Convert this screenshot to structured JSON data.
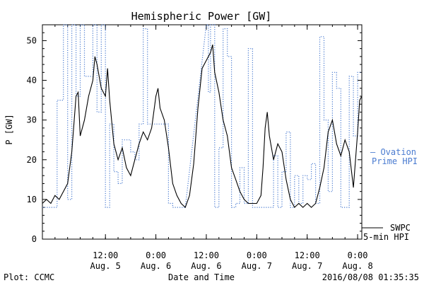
{
  "chart_data": {
    "type": "line",
    "title": "Hemispheric Power [GW]",
    "xlabel": "Date and Time",
    "ylabel": "P [GW]",
    "xlim": [
      "2016-08-04 21:00",
      "2016-08-08 01:00"
    ],
    "ylim": [
      0,
      54
    ],
    "yticks": [
      0,
      10,
      20,
      30,
      40,
      50
    ],
    "xticks": [
      {
        "time": "2016-08-05 12:00",
        "line1": "12:00",
        "line2": "Aug. 5"
      },
      {
        "time": "2016-08-06 00:00",
        "line1": "0:00",
        "line2": "Aug. 6"
      },
      {
        "time": "2016-08-06 12:00",
        "line1": "12:00",
        "line2": "Aug. 6"
      },
      {
        "time": "2016-08-07 00:00",
        "line1": "0:00",
        "line2": "Aug. 7"
      },
      {
        "time": "2016-08-07 12:00",
        "line1": "12:00",
        "line2": "Aug. 7"
      },
      {
        "time": "2016-08-08 00:00",
        "line1": "0:00",
        "line2": "Aug. 8"
      }
    ],
    "legend_position": "right",
    "series": [
      {
        "name": "SWPC 5-min HPI",
        "label_lines": [
          "SWPC",
          "5-min HPI"
        ],
        "color": "#000000",
        "style": "solid",
        "points": [
          [
            "2016-08-04 21:00",
            9
          ],
          [
            "2016-08-04 22:00",
            10
          ],
          [
            "2016-08-04 23:00",
            9
          ],
          [
            "2016-08-05 00:00",
            11
          ],
          [
            "2016-08-05 01:00",
            10
          ],
          [
            "2016-08-05 02:00",
            12
          ],
          [
            "2016-08-05 03:00",
            14
          ],
          [
            "2016-08-05 04:00",
            22
          ],
          [
            "2016-08-05 05:00",
            36
          ],
          [
            "2016-08-05 05:30",
            37
          ],
          [
            "2016-08-05 06:00",
            26
          ],
          [
            "2016-08-05 07:00",
            30
          ],
          [
            "2016-08-05 08:00",
            36
          ],
          [
            "2016-08-05 09:00",
            40
          ],
          [
            "2016-08-05 09:30",
            46
          ],
          [
            "2016-08-05 10:00",
            44
          ],
          [
            "2016-08-05 11:00",
            38
          ],
          [
            "2016-08-05 12:00",
            36
          ],
          [
            "2016-08-05 12:30",
            43
          ],
          [
            "2016-08-05 13:00",
            35
          ],
          [
            "2016-08-05 14:00",
            24
          ],
          [
            "2016-08-05 15:00",
            20
          ],
          [
            "2016-08-05 16:00",
            23
          ],
          [
            "2016-08-05 17:00",
            18
          ],
          [
            "2016-08-05 18:00",
            16
          ],
          [
            "2016-08-05 19:00",
            20
          ],
          [
            "2016-08-05 20:00",
            24
          ],
          [
            "2016-08-05 21:00",
            27
          ],
          [
            "2016-08-05 22:00",
            25
          ],
          [
            "2016-08-05 23:00",
            28
          ],
          [
            "2016-08-06 00:00",
            36
          ],
          [
            "2016-08-06 00:30",
            38
          ],
          [
            "2016-08-06 01:00",
            33
          ],
          [
            "2016-08-06 02:00",
            30
          ],
          [
            "2016-08-06 03:00",
            23
          ],
          [
            "2016-08-06 04:00",
            14
          ],
          [
            "2016-08-06 05:00",
            11
          ],
          [
            "2016-08-06 06:00",
            9
          ],
          [
            "2016-08-06 07:00",
            8
          ],
          [
            "2016-08-06 08:00",
            11
          ],
          [
            "2016-08-06 09:00",
            19
          ],
          [
            "2016-08-06 10:00",
            33
          ],
          [
            "2016-08-06 11:00",
            43
          ],
          [
            "2016-08-06 12:00",
            45
          ],
          [
            "2016-08-06 13:00",
            47
          ],
          [
            "2016-08-06 13:30",
            49
          ],
          [
            "2016-08-06 14:00",
            42
          ],
          [
            "2016-08-06 15:00",
            37
          ],
          [
            "2016-08-06 16:00",
            30
          ],
          [
            "2016-08-06 17:00",
            26
          ],
          [
            "2016-08-06 18:00",
            18
          ],
          [
            "2016-08-06 19:00",
            15
          ],
          [
            "2016-08-06 20:00",
            12
          ],
          [
            "2016-08-06 21:00",
            10
          ],
          [
            "2016-08-06 22:00",
            9
          ],
          [
            "2016-08-06 23:00",
            9
          ],
          [
            "2016-08-07 00:00",
            9
          ],
          [
            "2016-08-07 01:00",
            11
          ],
          [
            "2016-08-07 01:30",
            18
          ],
          [
            "2016-08-07 02:00",
            28
          ],
          [
            "2016-08-07 02:30",
            32
          ],
          [
            "2016-08-07 03:00",
            26
          ],
          [
            "2016-08-07 04:00",
            20
          ],
          [
            "2016-08-07 05:00",
            24
          ],
          [
            "2016-08-07 06:00",
            22
          ],
          [
            "2016-08-07 07:00",
            15
          ],
          [
            "2016-08-07 08:00",
            10
          ],
          [
            "2016-08-07 09:00",
            8
          ],
          [
            "2016-08-07 10:00",
            9
          ],
          [
            "2016-08-07 11:00",
            8
          ],
          [
            "2016-08-07 12:00",
            9
          ],
          [
            "2016-08-07 13:00",
            8
          ],
          [
            "2016-08-07 14:00",
            9
          ],
          [
            "2016-08-07 15:00",
            13
          ],
          [
            "2016-08-07 16:00",
            18
          ],
          [
            "2016-08-07 17:00",
            27
          ],
          [
            "2016-08-07 18:00",
            30
          ],
          [
            "2016-08-07 19:00",
            24
          ],
          [
            "2016-08-07 20:00",
            21
          ],
          [
            "2016-08-07 21:00",
            25
          ],
          [
            "2016-08-07 22:00",
            22
          ],
          [
            "2016-08-07 23:00",
            13
          ],
          [
            "2016-08-08 00:00",
            27
          ],
          [
            "2016-08-08 00:30",
            35
          ],
          [
            "2016-08-08 01:00",
            36
          ]
        ]
      },
      {
        "name": "Ovation Prime HPI",
        "label_lines": [
          "— Ovation",
          "Prime HPI"
        ],
        "color": "#4a7bd0",
        "style": "dotted",
        "points": [
          [
            "2016-08-04 21:00",
            8
          ],
          [
            "2016-08-05 00:30",
            8
          ],
          [
            "2016-08-05 00:30",
            35
          ],
          [
            "2016-08-05 02:00",
            35
          ],
          [
            "2016-08-05 02:00",
            54
          ],
          [
            "2016-08-05 03:00",
            54
          ],
          [
            "2016-08-05 03:00",
            10
          ],
          [
            "2016-08-05 04:00",
            10
          ],
          [
            "2016-08-05 04:00",
            54
          ],
          [
            "2016-08-05 05:00",
            54
          ],
          [
            "2016-08-05 05:00",
            36
          ],
          [
            "2016-08-05 06:00",
            36
          ],
          [
            "2016-08-05 06:00",
            54
          ],
          [
            "2016-08-05 07:00",
            54
          ],
          [
            "2016-08-05 07:00",
            41
          ],
          [
            "2016-08-05 09:00",
            41
          ],
          [
            "2016-08-05 09:00",
            54
          ],
          [
            "2016-08-05 10:00",
            54
          ],
          [
            "2016-08-05 10:00",
            32
          ],
          [
            "2016-08-05 11:00",
            32
          ],
          [
            "2016-08-05 11:00",
            54
          ],
          [
            "2016-08-05 12:00",
            54
          ],
          [
            "2016-08-05 12:00",
            8
          ],
          [
            "2016-08-05 13:00",
            8
          ],
          [
            "2016-08-05 13:00",
            29
          ],
          [
            "2016-08-05 14:00",
            29
          ],
          [
            "2016-08-05 14:00",
            17
          ],
          [
            "2016-08-05 15:00",
            17
          ],
          [
            "2016-08-05 15:00",
            14
          ],
          [
            "2016-08-05 16:00",
            14
          ],
          [
            "2016-08-05 16:00",
            25
          ],
          [
            "2016-08-05 18:00",
            25
          ],
          [
            "2016-08-05 18:00",
            22
          ],
          [
            "2016-08-05 19:00",
            22
          ],
          [
            "2016-08-05 19:00",
            20
          ],
          [
            "2016-08-05 20:00",
            20
          ],
          [
            "2016-08-05 20:00",
            29
          ],
          [
            "2016-08-05 21:00",
            29
          ],
          [
            "2016-08-05 21:00",
            53
          ],
          [
            "2016-08-05 22:00",
            53
          ],
          [
            "2016-08-05 22:00",
            29
          ],
          [
            "2016-08-06 03:00",
            29
          ],
          [
            "2016-08-06 03:00",
            9
          ],
          [
            "2016-08-06 04:00",
            9
          ],
          [
            "2016-08-06 04:00",
            8
          ],
          [
            "2016-08-06 07:00",
            8
          ],
          [
            "2016-08-06 12:00",
            54
          ],
          [
            "2016-08-06 12:30",
            54
          ],
          [
            "2016-08-06 12:30",
            37
          ],
          [
            "2016-08-06 13:00",
            37
          ],
          [
            "2016-08-06 13:00",
            54
          ],
          [
            "2016-08-06 14:00",
            54
          ],
          [
            "2016-08-06 14:00",
            8
          ],
          [
            "2016-08-06 15:00",
            8
          ],
          [
            "2016-08-06 15:00",
            23
          ],
          [
            "2016-08-06 16:00",
            23
          ],
          [
            "2016-08-06 16:00",
            53
          ],
          [
            "2016-08-06 17:00",
            53
          ],
          [
            "2016-08-06 17:00",
            46
          ],
          [
            "2016-08-06 18:00",
            46
          ],
          [
            "2016-08-06 18:00",
            8
          ],
          [
            "2016-08-06 19:00",
            8
          ],
          [
            "2016-08-06 19:00",
            9
          ],
          [
            "2016-08-06 20:00",
            9
          ],
          [
            "2016-08-06 20:00",
            18
          ],
          [
            "2016-08-06 21:00",
            18
          ],
          [
            "2016-08-06 21:00",
            9
          ],
          [
            "2016-08-06 22:00",
            9
          ],
          [
            "2016-08-06 22:00",
            48
          ],
          [
            "2016-08-06 23:00",
            48
          ],
          [
            "2016-08-06 23:00",
            8
          ],
          [
            "2016-08-07 04:00",
            8
          ],
          [
            "2016-08-07 04:00",
            21
          ],
          [
            "2016-08-07 05:00",
            21
          ],
          [
            "2016-08-07 05:00",
            8
          ],
          [
            "2016-08-07 06:00",
            8
          ],
          [
            "2016-08-07 06:00",
            17
          ],
          [
            "2016-08-07 07:00",
            17
          ],
          [
            "2016-08-07 07:00",
            27
          ],
          [
            "2016-08-07 08:00",
            27
          ],
          [
            "2016-08-07 08:00",
            8
          ],
          [
            "2016-08-07 09:00",
            8
          ],
          [
            "2016-08-07 09:00",
            16
          ],
          [
            "2016-08-07 10:00",
            16
          ],
          [
            "2016-08-07 10:00",
            9
          ],
          [
            "2016-08-07 11:00",
            9
          ],
          [
            "2016-08-07 11:00",
            16
          ],
          [
            "2016-08-07 12:00",
            16
          ],
          [
            "2016-08-07 12:00",
            15
          ],
          [
            "2016-08-07 13:00",
            15
          ],
          [
            "2016-08-07 13:00",
            19
          ],
          [
            "2016-08-07 14:00",
            19
          ],
          [
            "2016-08-07 14:00",
            9
          ],
          [
            "2016-08-07 15:00",
            9
          ],
          [
            "2016-08-07 15:00",
            51
          ],
          [
            "2016-08-07 16:00",
            51
          ],
          [
            "2016-08-07 16:00",
            30
          ],
          [
            "2016-08-07 17:00",
            30
          ],
          [
            "2016-08-07 17:00",
            12
          ],
          [
            "2016-08-07 18:00",
            12
          ],
          [
            "2016-08-07 18:00",
            42
          ],
          [
            "2016-08-07 19:00",
            42
          ],
          [
            "2016-08-07 19:00",
            38
          ],
          [
            "2016-08-07 20:00",
            38
          ],
          [
            "2016-08-07 20:00",
            8
          ],
          [
            "2016-08-07 22:00",
            8
          ],
          [
            "2016-08-07 22:00",
            41
          ],
          [
            "2016-08-07 23:00",
            41
          ],
          [
            "2016-08-07 23:00",
            26
          ],
          [
            "2016-08-08 00:00",
            26
          ],
          [
            "2016-08-08 00:00",
            42
          ],
          [
            "2016-08-08 01:00",
            42
          ]
        ]
      }
    ]
  },
  "footer": {
    "left": "Plot: CCMC",
    "center": "Date and Time",
    "right": "2016/08/08 01:35:35"
  }
}
